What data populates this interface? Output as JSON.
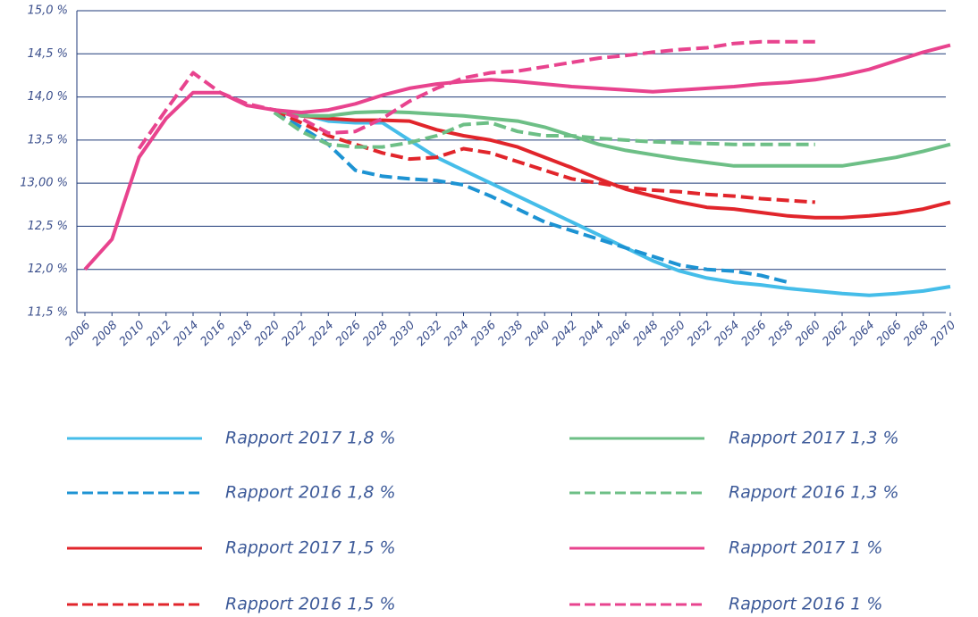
{
  "chart_data": {
    "type": "line",
    "x": [
      2006,
      2008,
      2010,
      2012,
      2014,
      2016,
      2018,
      2020,
      2022,
      2024,
      2026,
      2028,
      2030,
      2032,
      2034,
      2036,
      2038,
      2040,
      2042,
      2044,
      2046,
      2048,
      2050,
      2052,
      2054,
      2056,
      2058,
      2060,
      2062,
      2064,
      2066,
      2068,
      2070
    ],
    "xlim": [
      2006,
      2070
    ],
    "xticks": [
      2006,
      2008,
      2010,
      2012,
      2014,
      2016,
      2018,
      2020,
      2022,
      2024,
      2026,
      2028,
      2030,
      2032,
      2034,
      2036,
      2038,
      2040,
      2042,
      2044,
      2046,
      2048,
      2050,
      2052,
      2054,
      2056,
      2058,
      2060,
      2062,
      2064,
      2066,
      2068,
      2070
    ],
    "ylim": [
      11.5,
      15.0
    ],
    "yticks": [
      {
        "value": 11.5,
        "label": "11,5 %"
      },
      {
        "value": 12.0,
        "label": "12,0 %"
      },
      {
        "value": 12.5,
        "label": "12,5 %"
      },
      {
        "value": 13.0,
        "label": "13,00 %"
      },
      {
        "value": 13.5,
        "label": "13,5 %"
      },
      {
        "value": 14.0,
        "label": "14,0 %"
      },
      {
        "value": 14.5,
        "label": "14,5 %"
      },
      {
        "value": 15.0,
        "label": "15,0 %"
      }
    ],
    "grid": true,
    "series": [
      {
        "name": "Rapport 2017 1,8 %",
        "color": "#45bde9",
        "dashed": false,
        "values": [
          null,
          null,
          null,
          null,
          null,
          null,
          null,
          13.85,
          13.8,
          13.72,
          13.7,
          13.7,
          13.5,
          13.3,
          13.15,
          13.0,
          12.85,
          12.7,
          12.55,
          12.4,
          12.25,
          12.1,
          11.98,
          11.9,
          11.85,
          11.82,
          11.78,
          11.75,
          11.72,
          11.7,
          11.72,
          11.75,
          11.8
        ]
      },
      {
        "name": "Rapport 2016 1,8 %",
        "color": "#1d93d3",
        "dashed": true,
        "values": [
          null,
          null,
          null,
          null,
          null,
          null,
          null,
          13.82,
          13.65,
          13.45,
          13.15,
          13.08,
          13.05,
          13.03,
          12.98,
          12.85,
          12.7,
          12.55,
          12.45,
          12.35,
          12.25,
          12.15,
          12.05,
          12.0,
          11.98,
          11.93,
          11.85,
          null,
          null,
          null,
          null,
          null,
          null
        ]
      },
      {
        "name": "Rapport 2017 1,5 %",
        "color": "#e1252b",
        "dashed": false,
        "values": [
          null,
          null,
          null,
          null,
          null,
          null,
          null,
          13.85,
          13.78,
          13.75,
          13.73,
          13.73,
          13.72,
          13.62,
          13.55,
          13.5,
          13.42,
          13.3,
          13.18,
          13.05,
          12.93,
          12.85,
          12.78,
          12.72,
          12.7,
          12.66,
          12.62,
          12.6,
          12.6,
          12.62,
          12.65,
          12.7,
          12.78
        ]
      },
      {
        "name": "Rapport 2016 1,5 %",
        "color": "#e1252b",
        "dashed": true,
        "values": [
          null,
          null,
          null,
          null,
          null,
          null,
          null,
          13.85,
          13.7,
          13.55,
          13.45,
          13.35,
          13.28,
          13.3,
          13.4,
          13.35,
          13.25,
          13.15,
          13.05,
          13.0,
          12.95,
          12.92,
          12.9,
          12.87,
          12.85,
          12.82,
          12.8,
          12.78,
          null,
          null,
          null,
          null,
          null
        ]
      },
      {
        "name": "Rapport 2017 1,3 %",
        "color": "#6dbf86",
        "dashed": false,
        "values": [
          null,
          null,
          null,
          null,
          null,
          null,
          null,
          13.85,
          13.78,
          13.78,
          13.82,
          13.83,
          13.82,
          13.8,
          13.78,
          13.75,
          13.72,
          13.65,
          13.55,
          13.45,
          13.38,
          13.33,
          13.28,
          13.24,
          13.2,
          13.2,
          13.2,
          13.2,
          13.2,
          13.25,
          13.3,
          13.37,
          13.45
        ]
      },
      {
        "name": "Rapport 2016 1,3 %",
        "color": "#6dbf86",
        "dashed": true,
        "values": [
          null,
          null,
          null,
          null,
          null,
          null,
          null,
          13.82,
          13.6,
          13.45,
          13.42,
          13.42,
          13.47,
          13.55,
          13.68,
          13.7,
          13.6,
          13.55,
          13.55,
          13.52,
          13.5,
          13.48,
          13.47,
          13.46,
          13.45,
          13.45,
          13.45,
          13.45,
          null,
          null,
          null,
          null,
          null
        ]
      },
      {
        "name": "Rapport 2017 1 %",
        "color": "#e8438e",
        "dashed": false,
        "values": [
          12.0,
          12.35,
          13.3,
          13.75,
          14.05,
          14.05,
          13.9,
          13.85,
          13.82,
          13.85,
          13.92,
          14.02,
          14.1,
          14.15,
          14.18,
          14.2,
          14.18,
          14.15,
          14.12,
          14.1,
          14.08,
          14.06,
          14.08,
          14.1,
          14.12,
          14.15,
          14.17,
          14.2,
          14.25,
          14.32,
          14.42,
          14.52,
          14.6
        ]
      },
      {
        "name": "Rapport 2016 1 %",
        "color": "#e8438e",
        "dashed": true,
        "values": [
          null,
          null,
          13.4,
          13.85,
          14.28,
          14.05,
          13.92,
          13.85,
          13.75,
          13.58,
          13.6,
          13.75,
          13.95,
          14.1,
          14.22,
          14.28,
          14.3,
          14.35,
          14.4,
          14.45,
          14.48,
          14.52,
          14.55,
          14.57,
          14.62,
          14.64,
          14.64,
          14.64,
          null,
          null,
          null,
          null,
          null
        ]
      }
    ]
  }
}
